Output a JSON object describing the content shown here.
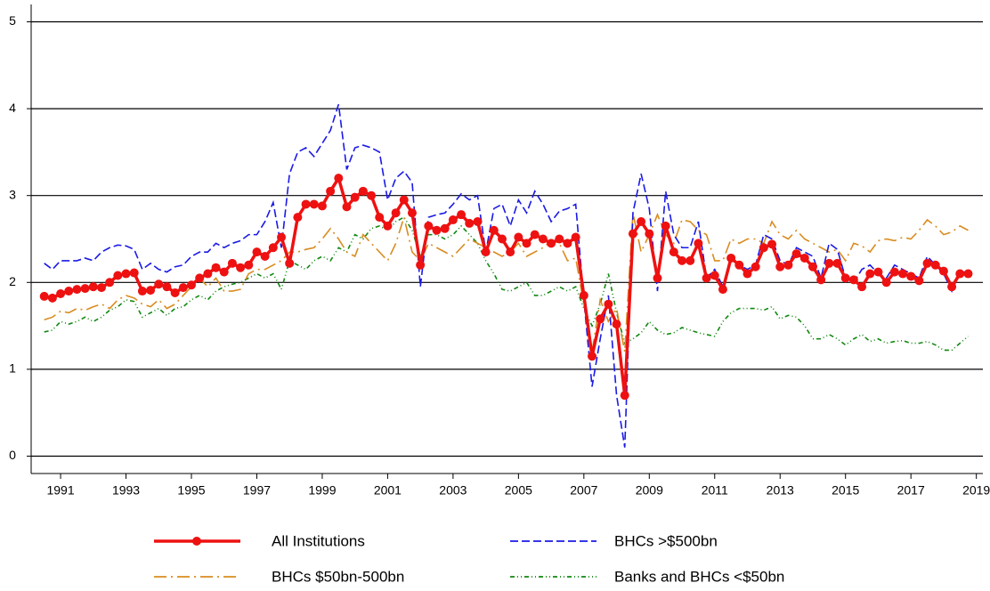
{
  "chart_data": {
    "type": "line",
    "x": [
      1991,
      1991.25,
      1991.5,
      1991.75,
      1992,
      1992.25,
      1992.5,
      1992.75,
      1993,
      1993.25,
      1993.5,
      1993.75,
      1994,
      1994.25,
      1994.5,
      1994.75,
      1995,
      1995.25,
      1995.5,
      1995.75,
      1996,
      1996.25,
      1996.5,
      1996.75,
      1997,
      1997.25,
      1997.5,
      1997.75,
      1998,
      1998.25,
      1998.5,
      1998.75,
      1999,
      1999.25,
      1999.5,
      1999.75,
      2000,
      2000.25,
      2000.5,
      2000.75,
      2001,
      2001.25,
      2001.5,
      2001.75,
      2002,
      2002.25,
      2002.5,
      2002.75,
      2003,
      2003.25,
      2003.5,
      2003.75,
      2004,
      2004.25,
      2004.5,
      2004.75,
      2005,
      2005.25,
      2005.5,
      2005.75,
      2006,
      2006.25,
      2006.5,
      2006.75,
      2007,
      2007.25,
      2007.5,
      2007.75,
      2008,
      2008.25,
      2008.5,
      2008.75,
      2009,
      2009.25,
      2009.5,
      2009.75,
      2010,
      2010.25,
      2010.5,
      2010.75,
      2011,
      2011.25,
      2011.5,
      2011.75,
      2012,
      2012.25,
      2012.5,
      2012.75,
      2013,
      2013.25,
      2013.5,
      2013.75,
      2014,
      2014.25,
      2014.5,
      2014.75,
      2015,
      2015.25,
      2015.5,
      2015.75,
      2016,
      2016.25,
      2016.5,
      2016.75,
      2017,
      2017.25,
      2017.5,
      2017.75,
      2018,
      2018.25,
      2018.5,
      2018.75,
      2019,
      2019.25
    ],
    "series": [
      {
        "name": "All Institutions",
        "color": "#ee1111",
        "line_style": "solid",
        "marker": "circle",
        "values": [
          1.84,
          1.82,
          1.87,
          1.9,
          1.92,
          1.93,
          1.95,
          1.94,
          2.0,
          2.08,
          2.1,
          2.11,
          1.9,
          1.91,
          1.98,
          1.95,
          1.88,
          1.94,
          1.97,
          2.05,
          2.1,
          2.17,
          2.12,
          2.22,
          2.17,
          2.2,
          2.35,
          2.3,
          2.4,
          2.52,
          2.22,
          2.75,
          2.9,
          2.9,
          2.88,
          3.05,
          3.2,
          2.87,
          2.98,
          3.05,
          3.0,
          2.75,
          2.65,
          2.8,
          2.95,
          2.8,
          2.2,
          2.65,
          2.6,
          2.62,
          2.72,
          2.78,
          2.68,
          2.7,
          2.35,
          2.6,
          2.5,
          2.35,
          2.52,
          2.45,
          2.55,
          2.5,
          2.45,
          2.5,
          2.45,
          2.52,
          1.85,
          1.15,
          1.58,
          1.75,
          1.52,
          0.7,
          2.56,
          2.7,
          2.56,
          2.05,
          2.65,
          2.35,
          2.25,
          2.25,
          2.45,
          2.05,
          2.08,
          1.92,
          2.28,
          2.2,
          2.1,
          2.18,
          2.4,
          2.44,
          2.18,
          2.2,
          2.33,
          2.28,
          2.18,
          2.03,
          2.22,
          2.22,
          2.05,
          2.03,
          1.95,
          2.1,
          2.12,
          2.0,
          2.12,
          2.1,
          2.07,
          2.02,
          2.22,
          2.2,
          2.13,
          1.95,
          2.1,
          2.1
        ]
      },
      {
        "name": "BHCs >$500bn",
        "color": "#1a1ae6",
        "line_style": "dashed",
        "values": [
          2.22,
          2.15,
          2.25,
          2.25,
          2.25,
          2.28,
          2.25,
          2.35,
          2.4,
          2.43,
          2.42,
          2.38,
          2.15,
          2.22,
          2.15,
          2.12,
          2.18,
          2.2,
          2.3,
          2.35,
          2.35,
          2.45,
          2.4,
          2.45,
          2.48,
          2.55,
          2.55,
          2.7,
          2.92,
          2.4,
          3.25,
          3.5,
          3.55,
          3.45,
          3.6,
          3.75,
          4.05,
          3.3,
          3.55,
          3.58,
          3.55,
          3.5,
          2.95,
          3.2,
          3.28,
          3.15,
          1.95,
          2.75,
          2.78,
          2.8,
          2.9,
          3.02,
          2.95,
          3.0,
          2.35,
          2.85,
          2.9,
          2.65,
          2.95,
          2.8,
          3.05,
          2.9,
          2.7,
          2.82,
          2.85,
          2.9,
          1.8,
          0.8,
          1.35,
          1.85,
          0.7,
          0.1,
          2.8,
          3.25,
          2.85,
          1.9,
          3.05,
          2.55,
          2.4,
          2.4,
          2.7,
          2.05,
          2.15,
          1.95,
          2.3,
          2.2,
          2.15,
          2.2,
          2.55,
          2.5,
          2.25,
          2.2,
          2.4,
          2.35,
          2.3,
          2.05,
          2.45,
          2.38,
          2.05,
          2.0,
          2.15,
          2.2,
          2.1,
          2.05,
          2.2,
          2.15,
          2.1,
          2.05,
          2.3,
          2.2,
          2.1,
          1.9,
          2.12,
          2.12
        ]
      },
      {
        "name": "BHCs $50bn-500bn",
        "color": "#d98c1f",
        "line_style": "dash-dot",
        "values": [
          1.57,
          1.6,
          1.67,
          1.65,
          1.7,
          1.68,
          1.72,
          1.75,
          1.7,
          1.8,
          1.85,
          1.82,
          1.75,
          1.72,
          1.8,
          1.7,
          1.75,
          1.85,
          1.95,
          2.05,
          1.95,
          2.05,
          1.9,
          1.9,
          1.92,
          2.1,
          2.15,
          2.15,
          2.2,
          2.25,
          2.35,
          2.35,
          2.38,
          2.4,
          2.5,
          2.62,
          2.5,
          2.35,
          2.3,
          2.55,
          2.45,
          2.35,
          2.25,
          2.45,
          2.75,
          2.35,
          2.25,
          2.45,
          2.4,
          2.35,
          2.3,
          2.4,
          2.5,
          2.45,
          2.4,
          2.35,
          2.3,
          2.35,
          2.45,
          2.3,
          2.35,
          2.4,
          2.48,
          2.45,
          2.25,
          2.28,
          1.75,
          1.2,
          1.8,
          1.55,
          1.7,
          1.2,
          2.8,
          2.35,
          2.55,
          2.78,
          2.55,
          2.45,
          2.72,
          2.7,
          2.6,
          2.55,
          2.25,
          2.25,
          2.5,
          2.45,
          2.5,
          2.5,
          2.45,
          2.7,
          2.55,
          2.5,
          2.6,
          2.5,
          2.45,
          2.4,
          2.35,
          2.38,
          2.25,
          2.45,
          2.42,
          2.35,
          2.48,
          2.5,
          2.48,
          2.52,
          2.5,
          2.6,
          2.72,
          2.65,
          2.55,
          2.58,
          2.65,
          2.6
        ]
      },
      {
        "name": "Banks and BHCs <$50bn",
        "color": "#118811",
        "line_style": "dash-dot-dot",
        "values": [
          1.43,
          1.45,
          1.55,
          1.52,
          1.55,
          1.6,
          1.55,
          1.6,
          1.68,
          1.72,
          1.8,
          1.78,
          1.6,
          1.65,
          1.7,
          1.62,
          1.7,
          1.72,
          1.8,
          1.85,
          1.8,
          1.9,
          1.95,
          1.98,
          2.0,
          2.05,
          2.1,
          2.05,
          2.1,
          1.92,
          2.25,
          2.2,
          2.15,
          2.25,
          2.3,
          2.25,
          2.4,
          2.35,
          2.55,
          2.5,
          2.62,
          2.65,
          2.6,
          2.7,
          2.75,
          2.6,
          2.3,
          2.55,
          2.55,
          2.5,
          2.55,
          2.65,
          2.55,
          2.45,
          2.25,
          2.1,
          1.92,
          1.9,
          1.95,
          2.0,
          1.85,
          1.85,
          1.9,
          1.95,
          1.9,
          1.95,
          1.7,
          1.5,
          1.75,
          2.1,
          1.65,
          1.3,
          1.35,
          1.42,
          1.55,
          1.45,
          1.4,
          1.42,
          1.48,
          1.45,
          1.42,
          1.4,
          1.38,
          1.55,
          1.65,
          1.7,
          1.7,
          1.7,
          1.68,
          1.72,
          1.58,
          1.62,
          1.6,
          1.5,
          1.35,
          1.35,
          1.4,
          1.35,
          1.28,
          1.35,
          1.4,
          1.32,
          1.35,
          1.3,
          1.32,
          1.33,
          1.3,
          1.3,
          1.32,
          1.28,
          1.22,
          1.22,
          1.3,
          1.38
        ]
      }
    ],
    "xlim": [
      1990.6,
      2019.7
    ],
    "xticks": [
      {
        "value": 1991.5,
        "label": "1991"
      },
      {
        "value": 1993.5,
        "label": "1993"
      },
      {
        "value": 1995.5,
        "label": "1995"
      },
      {
        "value": 1997.5,
        "label": "1997"
      },
      {
        "value": 1999.5,
        "label": "1999"
      },
      {
        "value": 2001.5,
        "label": "2001"
      },
      {
        "value": 2003.5,
        "label": "2003"
      },
      {
        "value": 2005.5,
        "label": "2005"
      },
      {
        "value": 2007.5,
        "label": "2007"
      },
      {
        "value": 2009.5,
        "label": "2009"
      },
      {
        "value": 2011.5,
        "label": "2011"
      },
      {
        "value": 2013.5,
        "label": "2013"
      },
      {
        "value": 2015.5,
        "label": "2015"
      },
      {
        "value": 2017.5,
        "label": "2017"
      },
      {
        "value": 2019.5,
        "label": "2019"
      }
    ],
    "ylim": [
      -0.2,
      5.2
    ],
    "yticks": [
      0,
      1,
      2,
      3,
      4,
      5
    ],
    "grid": true,
    "legend": "bottom"
  }
}
